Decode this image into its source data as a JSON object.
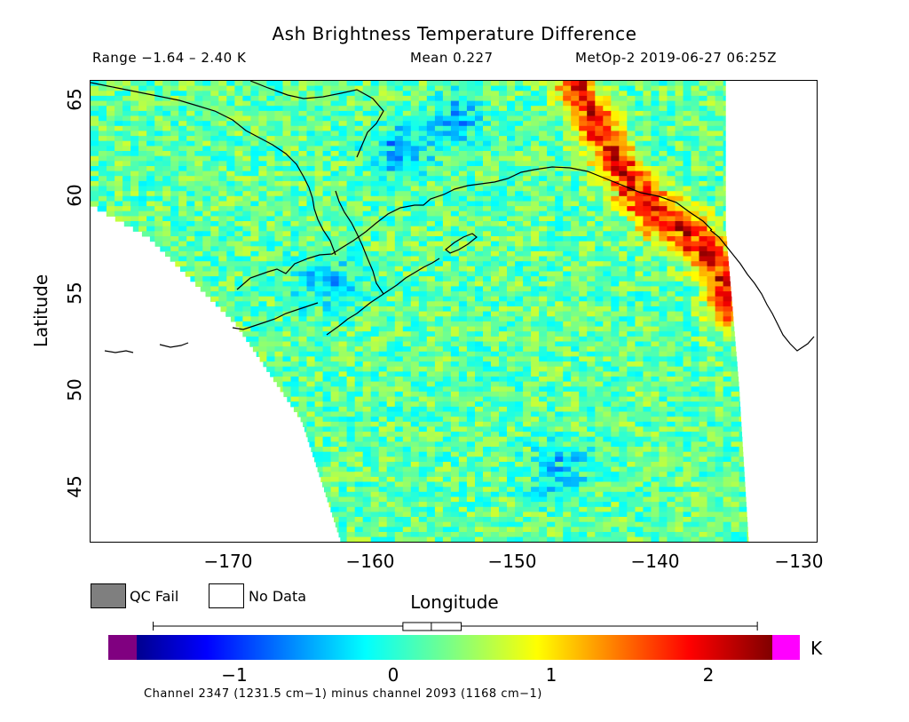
{
  "header": {
    "title": "Ash Brightness Temperature Difference",
    "range": "Range −1.64 – 2.40 K",
    "mean": "Mean 0.227",
    "source": "MetOp-2 2019-06-27 06:25Z"
  },
  "axes": {
    "xlabel": "Longitude",
    "ylabel": "Latitude",
    "x_ticks": [
      "−170",
      "−160",
      "−150",
      "−140",
      "−130"
    ],
    "y_ticks": [
      "65",
      "60",
      "55",
      "50",
      "45"
    ],
    "xlim": [
      -180,
      -130
    ],
    "ylim": [
      42.5,
      66.5
    ]
  },
  "legend": {
    "qc_fail": "QC Fail",
    "no_data": "No Data",
    "qc_fail_color": "#7f7f7f",
    "no_data_color": "#ffffff"
  },
  "colorbar": {
    "ticks": [
      "−1",
      "0",
      "1",
      "2"
    ],
    "tick_values": [
      -1,
      0,
      1,
      2
    ],
    "unit": "K",
    "min": -1.75,
    "max": 2.5,
    "under_color": "#800080",
    "over_color": "#ff00ff",
    "range_marker": {
      "min": -1.64,
      "max": 2.4,
      "mean": 0.227,
      "box_low": 0.03,
      "box_high": 0.42,
      "median": 0.22
    }
  },
  "footnote": "Channel 2347 (1231.5 cm−1) minus channel 2093 (1168 cm−1)",
  "chart_data": {
    "type": "heatmap",
    "title": "Ash Brightness Temperature Difference",
    "xlabel": "Longitude",
    "ylabel": "Latitude",
    "xlim": [
      -180,
      -130
    ],
    "ylim": [
      42.5,
      66.5
    ],
    "value_unit": "K",
    "value_range": [
      -1.64,
      2.4
    ],
    "mean": 0.227,
    "features": [
      {
        "name": "high",
        "lon_lat": [
          [
            -147,
            66.5
          ],
          [
            -145,
            63.5
          ],
          [
            -143,
            61
          ],
          [
            -141,
            59.5
          ],
          [
            -139,
            58.5
          ],
          [
            -137,
            57
          ],
          [
            -136.5,
            55
          ]
        ],
        "value": 1.8
      },
      {
        "name": "low",
        "lon_lat": [
          [
            -164,
            56
          ],
          [
            -148,
            46.5
          ],
          [
            -159,
            63
          ],
          [
            -155,
            64.5
          ]
        ],
        "value": -0.7
      }
    ],
    "swath_edges": {
      "west": [
        [
          -180,
          60.2
        ],
        [
          -176,
          58.5
        ],
        [
          -170,
          54
        ],
        [
          -165.5,
          49
        ],
        [
          -162.7,
          42.5
        ]
      ],
      "east": [
        [
          -136.4,
          66.5
        ],
        [
          -136.4,
          59
        ],
        [
          -135.5,
          51
        ],
        [
          -134.8,
          42.5
        ]
      ]
    }
  }
}
